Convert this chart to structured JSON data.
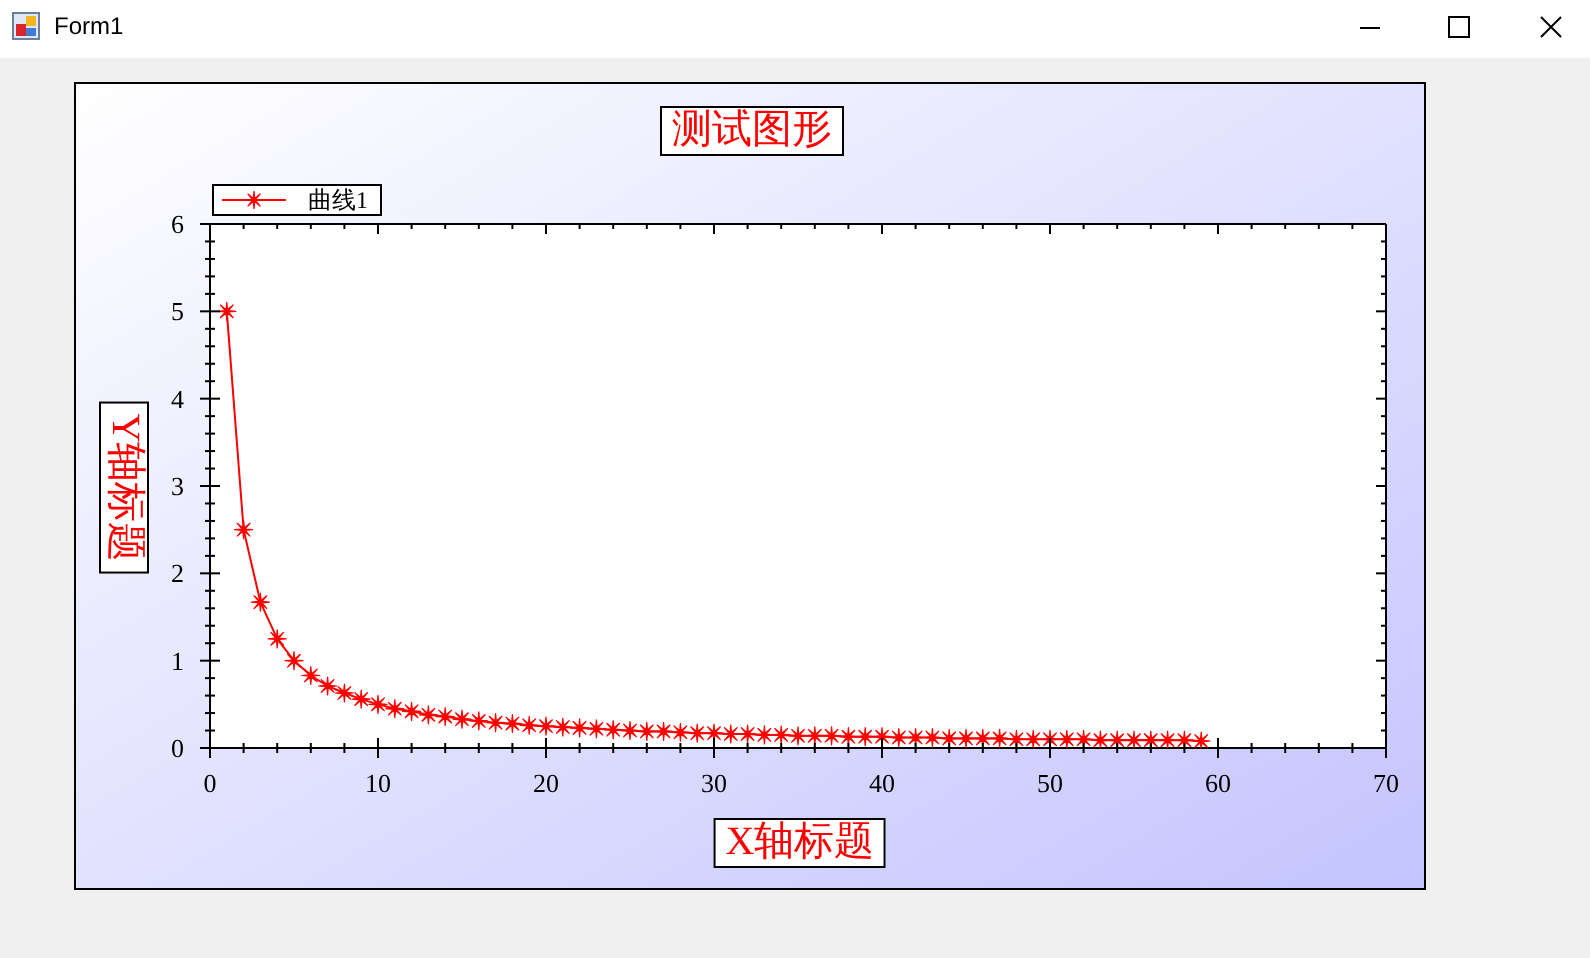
{
  "chart_data": {
    "type": "line",
    "title": "测试图形",
    "xlabel": "X轴标题",
    "ylabel": "Y轴标题",
    "annotations": [
      "Form1"
    ],
    "x": [
      1,
      2,
      3,
      4,
      5,
      6,
      7,
      8,
      9,
      10,
      11,
      12,
      13,
      14,
      15,
      16,
      17,
      18,
      19,
      20,
      21,
      22,
      23,
      24,
      25,
      26,
      27,
      28,
      29,
      30,
      31,
      32,
      33,
      34,
      35,
      36,
      37,
      38,
      39,
      40,
      41,
      42,
      43,
      44,
      45,
      46,
      47,
      48,
      49,
      50,
      51,
      52,
      53,
      54,
      55,
      56,
      57,
      58,
      59
    ],
    "series": [
      {
        "name": "曲线1",
        "color": "#ff0000",
        "values": [
          5,
          2.5,
          1.67,
          1.25,
          1,
          0.83,
          0.71,
          0.63,
          0.56,
          0.5,
          0.45,
          0.42,
          0.38,
          0.36,
          0.33,
          0.31,
          0.29,
          0.28,
          0.26,
          0.25,
          0.24,
          0.23,
          0.22,
          0.21,
          0.2,
          0.19,
          0.19,
          0.18,
          0.17,
          0.17,
          0.16,
          0.16,
          0.15,
          0.15,
          0.14,
          0.14,
          0.14,
          0.13,
          0.13,
          0.13,
          0.12,
          0.12,
          0.12,
          0.11,
          0.11,
          0.11,
          0.11,
          0.1,
          0.1,
          0.1,
          0.1,
          0.1,
          0.09,
          0.09,
          0.09,
          0.09,
          0.09,
          0.09,
          0.08
        ]
      }
    ],
    "xlim": [
      0,
      70
    ],
    "ylim": [
      0,
      6
    ],
    "xticks": [
      0,
      {
        "value": 2,
        "label": null
      },
      {
        "value": 4,
        "label": null
      },
      {
        "value": 6,
        "label": null
      },
      {
        "value": 8,
        "label": null
      },
      10,
      {
        "value": 12,
        "label": null
      },
      {
        "value": 14,
        "label": null
      },
      {
        "value": 16,
        "label": null
      },
      {
        "value": 18,
        "label": null
      },
      20,
      {
        "value": 22,
        "label": null
      },
      {
        "value": 24,
        "label": null
      },
      {
        "value": 26,
        "label": null
      },
      {
        "value": 28,
        "label": null
      },
      30,
      {
        "value": 32,
        "label": null
      },
      {
        "value": 34,
        "label": null
      },
      {
        "value": 36,
        "label": null
      },
      {
        "value": 38,
        "label": null
      },
      40,
      {
        "value": 42,
        "label": null
      },
      {
        "value": 44,
        "label": null
      },
      {
        "value": 46,
        "label": null
      },
      {
        "value": 48,
        "label": null
      },
      50,
      {
        "value": 52,
        "label": null
      },
      {
        "value": 54,
        "label": null
      },
      {
        "value": 56,
        "label": null
      },
      {
        "value": 58,
        "label": null
      },
      60,
      {
        "value": 62,
        "label": null
      },
      {
        "value": 64,
        "label": null
      },
      {
        "value": 66,
        "label": null
      },
      {
        "value": 68,
        "label": null
      },
      70
    ],
    "yticks": [
      0,
      {
        "value": 0.2,
        "label": null
      },
      {
        "value": 0.4,
        "label": null
      },
      {
        "value": 0.6,
        "label": null
      },
      {
        "value": 0.8,
        "label": null
      },
      1,
      {
        "value": 1.2,
        "label": null
      },
      {
        "value": 1.4,
        "label": null
      },
      {
        "value": 1.6,
        "label": null
      },
      {
        "value": 1.8,
        "label": null
      },
      2,
      {
        "value": 2.2,
        "label": null
      },
      {
        "value": 2.4,
        "label": null
      },
      {
        "value": 2.6,
        "label": null
      },
      {
        "value": 2.8,
        "label": null
      },
      3,
      {
        "value": 3.2,
        "label": null
      },
      {
        "value": 3.4,
        "label": null
      },
      {
        "value": 3.6,
        "label": null
      },
      {
        "value": 3.8,
        "label": null
      },
      4,
      {
        "value": 4.2,
        "label": null
      },
      {
        "value": 4.4,
        "label": null
      },
      {
        "value": 4.6,
        "label": null
      },
      {
        "value": 4.8,
        "label": null
      },
      5,
      {
        "value": 5.2,
        "label": null
      },
      {
        "value": 5.4,
        "label": null
      },
      {
        "value": 5.6,
        "label": null
      },
      {
        "value": 5.8,
        "label": null
      },
      6
    ],
    "legend": "top left",
    "marker": "star",
    "line_style": "solid"
  }
}
